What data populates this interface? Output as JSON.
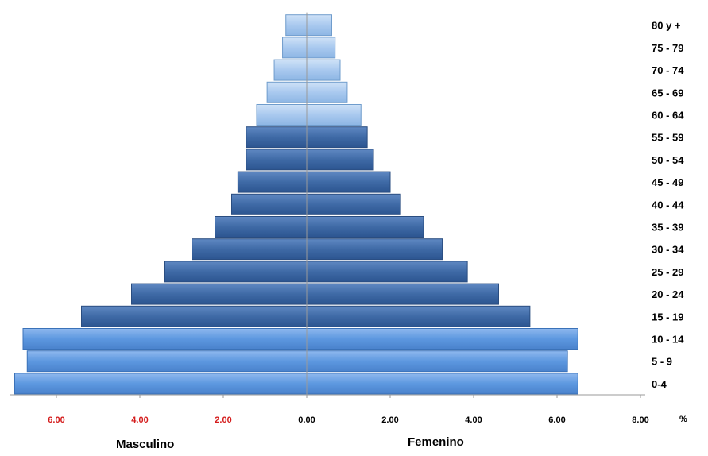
{
  "chart_data": {
    "type": "bar",
    "orientation": "horizontal",
    "layout": "population-pyramid",
    "categories": [
      "0-4",
      "5 - 9",
      "10 - 14",
      "15 - 19",
      "20 - 24",
      "25 - 29",
      "30 - 34",
      "35 - 39",
      "40 - 44",
      "45 - 49",
      "50 - 54",
      "55 - 59",
      "60 - 64",
      "65 - 69",
      "70 - 74",
      "75 - 79",
      "80 y +"
    ],
    "series": [
      {
        "name": "Masculino",
        "side": "left",
        "values": [
          7.0,
          6.7,
          6.8,
          5.4,
          4.2,
          3.4,
          2.75,
          2.2,
          1.8,
          1.65,
          1.45,
          1.45,
          1.2,
          0.95,
          0.78,
          0.58,
          0.5
        ]
      },
      {
        "name": "Femenino",
        "side": "right",
        "values": [
          6.5,
          6.25,
          6.5,
          5.35,
          4.6,
          3.85,
          3.25,
          2.8,
          2.25,
          2.0,
          1.6,
          1.45,
          1.3,
          0.97,
          0.8,
          0.68,
          0.6
        ]
      }
    ],
    "x_ticks_left": [
      "6.00",
      "4.00",
      "2.00"
    ],
    "x_ticks_right": [
      "0.00",
      "2.00",
      "4.00",
      "6.00",
      "8.00"
    ],
    "x_tick_values_left": [
      6,
      4,
      2
    ],
    "x_tick_values_right": [
      0,
      2,
      4,
      6,
      8
    ],
    "xlim": [
      -7,
      8
    ],
    "x_unit": "%",
    "xlabel_left": "Masculino",
    "xlabel_right": "Femenino",
    "grid": false,
    "light_group_from_index": 12,
    "colors": {
      "dark_fill": "#3f6aa6",
      "dark_edge": "#2a4d80",
      "light_fill": "#a9c9ef",
      "light_edge": "#6f9ccc",
      "base_fill": "#5d98e0",
      "base_edge": "#3b72b8",
      "axis": "#9a9a9a",
      "left_tick": "#d41c1c",
      "right_tick": "#000000"
    }
  }
}
